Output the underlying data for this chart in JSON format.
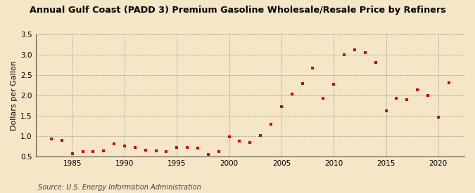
{
  "title": "Annual Gulf Coast (PADD 3) Premium Gasoline Wholesale/Resale Price by Refiners",
  "ylabel": "Dollars per Gallon",
  "source": "Source: U.S. Energy Information Administration",
  "background_color": "#f5e6c8",
  "plot_bg_color": "#f5e6c8",
  "marker_color": "#cc0000",
  "xlim": [
    1981.5,
    2022.5
  ],
  "ylim": [
    0.5,
    3.5
  ],
  "yticks": [
    0.5,
    1.0,
    1.5,
    2.0,
    2.5,
    3.0,
    3.5
  ],
  "xticks": [
    1985,
    1990,
    1995,
    2000,
    2005,
    2010,
    2015,
    2020
  ],
  "data": {
    "years": [
      1983,
      1984,
      1985,
      1986,
      1987,
      1988,
      1989,
      1990,
      1991,
      1992,
      1993,
      1994,
      1995,
      1996,
      1997,
      1998,
      1999,
      2000,
      2001,
      2002,
      2003,
      2004,
      2005,
      2006,
      2007,
      2008,
      2009,
      2010,
      2011,
      2012,
      2013,
      2014,
      2015,
      2016,
      2017,
      2018,
      2019,
      2020,
      2021
    ],
    "values": [
      0.93,
      0.9,
      0.57,
      0.62,
      0.63,
      0.64,
      0.82,
      0.76,
      0.73,
      0.65,
      0.64,
      0.62,
      0.72,
      0.72,
      0.71,
      0.55,
      0.63,
      0.98,
      0.88,
      0.84,
      1.02,
      1.3,
      1.72,
      2.04,
      2.3,
      2.68,
      1.93,
      2.28,
      3.0,
      3.12,
      3.05,
      2.81,
      1.62,
      1.93,
      1.9,
      2.14,
      2.0,
      1.46,
      2.31
    ]
  }
}
